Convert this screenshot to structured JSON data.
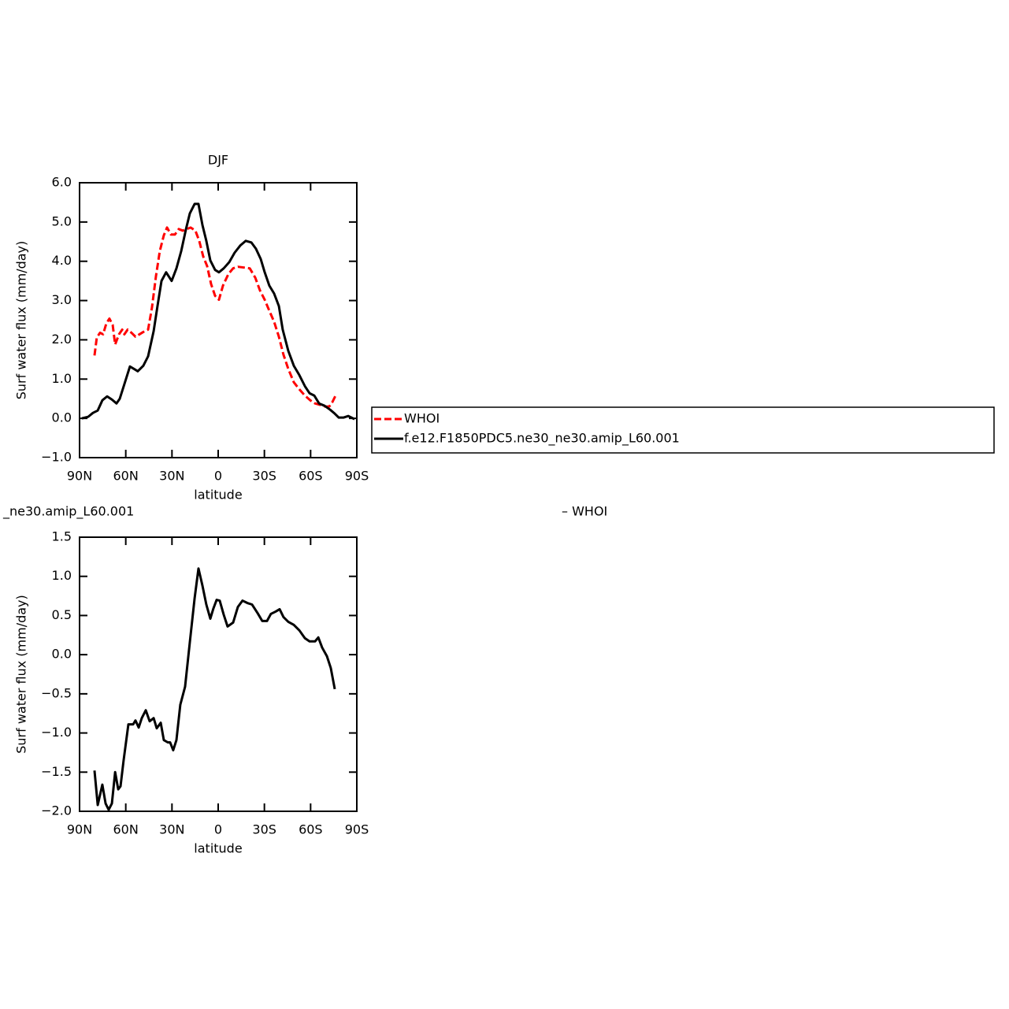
{
  "chart_data": [
    {
      "type": "line",
      "title": "DJF",
      "xlabel": "latitude",
      "ylabel": "Surf water flux (mm/day)",
      "xlim": [
        90,
        -90
      ],
      "xticks": [
        {
          "value": 90,
          "label": "90N"
        },
        {
          "value": 60,
          "label": "60N"
        },
        {
          "value": 30,
          "label": "30N"
        },
        0,
        {
          "value": -30,
          "label": "30S"
        },
        {
          "value": -60,
          "label": "60S"
        },
        {
          "value": -90,
          "label": "90S"
        }
      ],
      "ylim": [
        -1,
        6
      ],
      "yticks": [
        {
          "value": -1,
          "label": "−1.0"
        },
        {
          "value": 0,
          "label": "0.0"
        },
        {
          "value": 1,
          "label": "1.0"
        },
        {
          "value": 2,
          "label": "2.0"
        },
        {
          "value": 3,
          "label": "3.0"
        },
        {
          "value": 4,
          "label": "4.0"
        },
        {
          "value": 5,
          "label": "5.0"
        },
        {
          "value": 6,
          "label": "6.0"
        }
      ],
      "legend": "outside-right",
      "series": [
        {
          "name": "WHOI",
          "color": "#ff0000",
          "dash": true,
          "x": [
            80.3,
            78.8,
            76.7,
            74.7,
            72.6,
            70.6,
            68.5,
            66.9,
            64.4,
            62.3,
            60.9,
            58.8,
            56.3,
            53.7,
            51.1,
            48.6,
            45.5,
            43,
            40.4,
            37.9,
            35.3,
            33.2,
            30.7,
            28.1,
            25.6,
            23,
            20.5,
            17.9,
            14.8,
            12.3,
            9.7,
            7.2,
            4.6,
            2,
            -0.5,
            -3.1,
            -6.7,
            -9.7,
            -12.8,
            -16.9,
            -20.5,
            -24.1,
            -27.1,
            -30.2,
            -33.2,
            -36.3,
            -39.4,
            -42.4,
            -45.5,
            -49.1,
            -52.7,
            -56.3,
            -59.8,
            -62.9,
            -66.5,
            -69.5,
            -72.1,
            -74.2,
            -76.2
          ],
          "values": [
            1.6,
            2.06,
            2.18,
            2.14,
            2.42,
            2.54,
            2.38,
            1.88,
            2.14,
            2.26,
            2.14,
            2.26,
            2.18,
            2.08,
            2.14,
            2.2,
            2.26,
            2.82,
            3.62,
            4.26,
            4.66,
            4.86,
            4.68,
            4.68,
            4.82,
            4.78,
            4.82,
            4.86,
            4.78,
            4.52,
            4.12,
            3.88,
            3.42,
            3.12,
            3.02,
            3.38,
            3.68,
            3.82,
            3.86,
            3.84,
            3.82,
            3.58,
            3.26,
            3.02,
            2.74,
            2.46,
            2.08,
            1.62,
            1.26,
            0.92,
            0.74,
            0.58,
            0.46,
            0.38,
            0.34,
            0.3,
            0.3,
            0.42,
            0.58
          ]
        },
        {
          "name": "f.e12.F1850PDC5.ne30_ne30.amip_L60.001",
          "color": "#000000",
          "dash": false,
          "x": [
            88.5,
            84.4,
            81.3,
            78.2,
            75.2,
            72.1,
            69,
            66,
            63.9,
            61,
            57.3,
            54.7,
            52.2,
            48.6,
            45.5,
            41.9,
            39.4,
            36.8,
            33.8,
            30.2,
            27.1,
            24,
            20.9,
            18.4,
            15.3,
            12.8,
            10.2,
            7.7,
            5.1,
            2,
            -0.5,
            -3.6,
            -7.2,
            -10.7,
            -14.3,
            -17.9,
            -21.5,
            -24.5,
            -27.6,
            -30.2,
            -33.2,
            -36.3,
            -39.4,
            -41.9,
            -45.5,
            -49.1,
            -52.7,
            -56.3,
            -59.3,
            -62.4,
            -65.5,
            -69.1,
            -72.7,
            -75.7,
            -78.3,
            -81.3,
            -84.4,
            -88.5
          ],
          "values": [
            0,
            0.04,
            0.14,
            0.2,
            0.46,
            0.56,
            0.48,
            0.38,
            0.5,
            0.86,
            1.32,
            1.26,
            1.2,
            1.34,
            1.58,
            2.22,
            2.86,
            3.5,
            3.72,
            3.5,
            3.82,
            4.26,
            4.82,
            5.22,
            5.46,
            5.46,
            4.92,
            4.52,
            4.02,
            3.78,
            3.72,
            3.82,
            3.98,
            4.22,
            4.4,
            4.52,
            4.48,
            4.32,
            4.06,
            3.72,
            3.38,
            3.18,
            2.86,
            2.26,
            1.72,
            1.34,
            1.1,
            0.82,
            0.64,
            0.58,
            0.38,
            0.32,
            0.22,
            0.12,
            0.02,
            0.02,
            0.06,
            -0.02
          ]
        }
      ]
    },
    {
      "type": "line",
      "title_left": "_ne30.amip_L60.001",
      "title_right": "– WHOI",
      "xlabel": "latitude",
      "ylabel": "Surf water flux (mm/day)",
      "xlim": [
        90,
        -90
      ],
      "xticks": [
        {
          "value": 90,
          "label": "90N"
        },
        {
          "value": 60,
          "label": "60N"
        },
        {
          "value": 30,
          "label": "30N"
        },
        0,
        {
          "value": -30,
          "label": "30S"
        },
        {
          "value": -60,
          "label": "60S"
        },
        {
          "value": -90,
          "label": "90S"
        }
      ],
      "ylim": [
        -2,
        1.5
      ],
      "yticks": [
        {
          "value": -2,
          "label": "−2.0"
        },
        {
          "value": -1.5,
          "label": "−1.5"
        },
        {
          "value": -1,
          "label": "−1.0"
        },
        {
          "value": -0.5,
          "label": "−0.5"
        },
        {
          "value": 0,
          "label": "0.0"
        },
        {
          "value": 0.5,
          "label": "0.5"
        },
        {
          "value": 1,
          "label": "1.0"
        },
        {
          "value": 1.5,
          "label": "1.5"
        }
      ],
      "series": [
        {
          "color": "#000000",
          "dash": false,
          "x": [
            80.3,
            78.2,
            75.2,
            73.1,
            71.1,
            69,
            66.9,
            64.9,
            63.4,
            61.4,
            58.3,
            55.2,
            53.7,
            51.6,
            49.6,
            47,
            44.5,
            41.9,
            39.9,
            37.3,
            35.3,
            32.7,
            31.2,
            29.2,
            27.1,
            24.6,
            21.5,
            18.4,
            15.3,
            12.8,
            10.2,
            7.7,
            5.1,
            3.1,
            1,
            -1,
            -3.6,
            -6.1,
            -9.7,
            -12.8,
            -15.8,
            -18.9,
            -22,
            -25.6,
            -28.6,
            -31.7,
            -34.2,
            -37.3,
            -39.9,
            -42.4,
            -45.5,
            -49.1,
            -52.7,
            -56.3,
            -59.3,
            -62.9,
            -65,
            -67.5,
            -70.6,
            -73.1,
            -75.7
          ],
          "values": [
            -1.48,
            -1.92,
            -1.66,
            -1.9,
            -1.98,
            -1.9,
            -1.5,
            -1.72,
            -1.68,
            -1.35,
            -0.89,
            -0.89,
            -0.84,
            -0.93,
            -0.81,
            -0.71,
            -0.85,
            -0.81,
            -0.94,
            -0.87,
            -1.09,
            -1.12,
            -1.12,
            -1.22,
            -1.09,
            -0.64,
            -0.41,
            0.16,
            0.72,
            1.1,
            0.88,
            0.64,
            0.46,
            0.59,
            0.7,
            0.69,
            0.51,
            0.36,
            0.41,
            0.61,
            0.69,
            0.66,
            0.64,
            0.53,
            0.43,
            0.43,
            0.52,
            0.55,
            0.58,
            0.48,
            0.42,
            0.38,
            0.31,
            0.21,
            0.17,
            0.17,
            0.22,
            0.09,
            -0.02,
            -0.17,
            -0.44
          ]
        }
      ]
    }
  ]
}
